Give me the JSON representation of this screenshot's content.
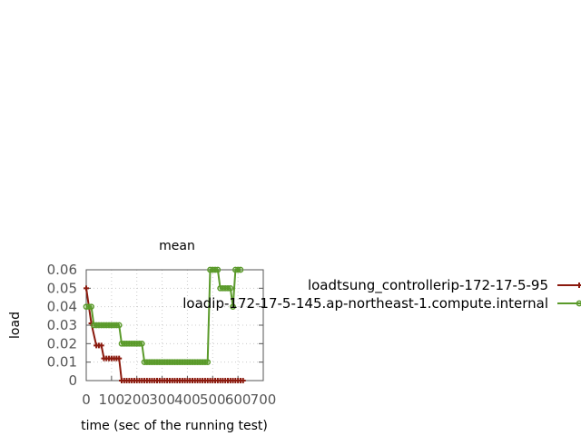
{
  "chart_data": {
    "type": "line",
    "title": "mean",
    "xlabel": "time (sec of the running test)",
    "ylabel": "load",
    "xlim": [
      0,
      700
    ],
    "ylim": [
      0,
      0.06
    ],
    "x_ticks": [
      0,
      100,
      200,
      300,
      400,
      500,
      600,
      700
    ],
    "x_tick_labels": [
      "0",
      "100",
      "200",
      "300",
      "400",
      "500",
      "600",
      "700"
    ],
    "y_ticks": [
      0,
      0.01,
      0.02,
      0.03,
      0.04,
      0.05,
      0.06
    ],
    "y_tick_labels": [
      "0",
      "0.01",
      "0.02",
      "0.03",
      "0.04",
      "0.05",
      "0.06"
    ],
    "grid": true,
    "legend_position": "right",
    "series": [
      {
        "name": "loadtsung_controller-ip-172-17-5-95",
        "legend_label": "loadtsung_controllerip-172-17-5-95",
        "color": "#8b1a0e",
        "marker": "plus",
        "x": [
          0,
          20,
          40,
          50,
          60,
          70,
          80,
          90,
          100,
          110,
          120,
          130,
          140,
          150,
          160,
          170,
          180,
          190,
          200,
          210,
          220,
          230,
          240,
          250,
          260,
          270,
          280,
          290,
          300,
          310,
          320,
          330,
          340,
          350,
          360,
          370,
          380,
          390,
          400,
          410,
          420,
          430,
          440,
          450,
          460,
          470,
          480,
          490,
          500,
          510,
          520,
          530,
          540,
          550,
          560,
          570,
          580,
          590,
          600,
          610,
          620
        ],
        "y": [
          0.05,
          0.031,
          0.019,
          0.019,
          0.019,
          0.012,
          0.012,
          0.012,
          0.012,
          0.012,
          0.012,
          0.012,
          0.0,
          0.0,
          0.0,
          0.0,
          0.0,
          0.0,
          0.0,
          0.0,
          0.0,
          0.0,
          0.0,
          0.0,
          0.0,
          0.0,
          0.0,
          0.0,
          0.0,
          0.0,
          0.0,
          0.0,
          0.0,
          0.0,
          0.0,
          0.0,
          0.0,
          0.0,
          0.0,
          0.0,
          0.0,
          0.0,
          0.0,
          0.0,
          0.0,
          0.0,
          0.0,
          0.0,
          0.0,
          0.0,
          0.0,
          0.0,
          0.0,
          0.0,
          0.0,
          0.0,
          0.0,
          0.0,
          0.0,
          0.0,
          0.0
        ]
      },
      {
        "name": "loadip-172-17-5-145.ap-northeast-1.compute.internal",
        "legend_label": "loadip-172-17-5-145.ap-northeast-1.compute.internal",
        "color": "#5a9a2a",
        "marker": "circle",
        "x": [
          0,
          10,
          20,
          30,
          40,
          50,
          60,
          70,
          80,
          90,
          100,
          110,
          120,
          130,
          140,
          150,
          160,
          170,
          180,
          190,
          200,
          210,
          220,
          230,
          240,
          250,
          260,
          270,
          280,
          290,
          300,
          310,
          320,
          330,
          340,
          350,
          360,
          370,
          380,
          390,
          400,
          410,
          420,
          430,
          440,
          450,
          460,
          470,
          480,
          490,
          500,
          510,
          520,
          530,
          540,
          550,
          560,
          570,
          580,
          590,
          600,
          610
        ],
        "y": [
          0.04,
          0.04,
          0.04,
          0.03,
          0.03,
          0.03,
          0.03,
          0.03,
          0.03,
          0.03,
          0.03,
          0.03,
          0.03,
          0.03,
          0.02,
          0.02,
          0.02,
          0.02,
          0.02,
          0.02,
          0.02,
          0.02,
          0.02,
          0.01,
          0.01,
          0.01,
          0.01,
          0.01,
          0.01,
          0.01,
          0.01,
          0.01,
          0.01,
          0.01,
          0.01,
          0.01,
          0.01,
          0.01,
          0.01,
          0.01,
          0.01,
          0.01,
          0.01,
          0.01,
          0.01,
          0.01,
          0.01,
          0.01,
          0.01,
          0.06,
          0.06,
          0.06,
          0.06,
          0.05,
          0.05,
          0.05,
          0.05,
          0.05,
          0.04,
          0.06,
          0.06,
          0.06
        ]
      }
    ]
  }
}
